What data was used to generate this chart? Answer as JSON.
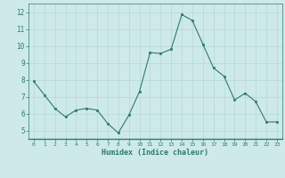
{
  "x": [
    0,
    1,
    2,
    3,
    4,
    5,
    6,
    7,
    8,
    9,
    10,
    11,
    12,
    13,
    14,
    15,
    16,
    17,
    18,
    19,
    20,
    21,
    22,
    23
  ],
  "y": [
    7.9,
    7.1,
    6.3,
    5.8,
    6.2,
    6.3,
    6.2,
    5.4,
    4.85,
    5.9,
    7.3,
    9.6,
    9.55,
    9.8,
    11.85,
    11.5,
    10.1,
    8.7,
    8.2,
    6.8,
    7.2,
    6.7,
    5.5,
    5.5
  ],
  "xlabel": "Humidex (Indice chaleur)",
  "ylim": [
    4.5,
    12.5
  ],
  "xlim": [
    -0.5,
    23.5
  ],
  "yticks": [
    5,
    6,
    7,
    8,
    9,
    10,
    11,
    12
  ],
  "xticks": [
    0,
    1,
    2,
    3,
    4,
    5,
    6,
    7,
    8,
    9,
    10,
    11,
    12,
    13,
    14,
    15,
    16,
    17,
    18,
    19,
    20,
    21,
    22,
    23
  ],
  "line_color": "#2d7a6e",
  "marker_color": "#2d7a6e",
  "bg_color": "#ceeae8",
  "grid_color": "#aed4d0",
  "axis_color": "#2d7a6e",
  "tick_color": "#2d7a6e",
  "label_color": "#2d7a6e",
  "bottom_bar_color": "#3a8a7e"
}
